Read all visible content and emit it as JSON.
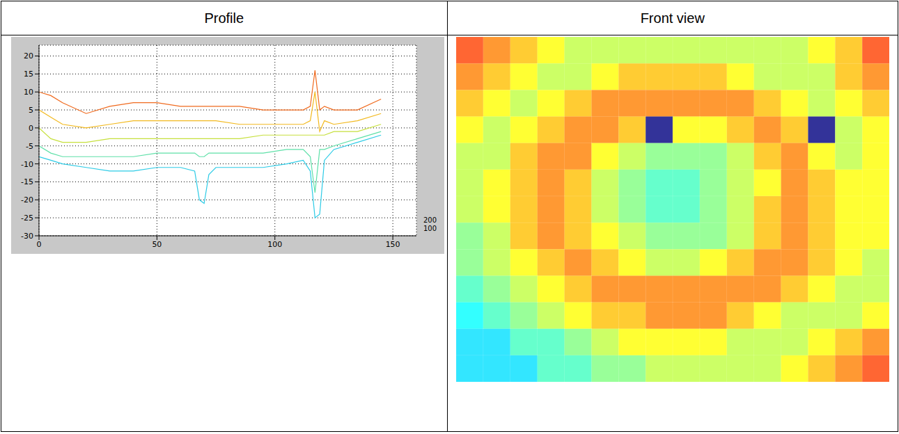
{
  "table": {
    "headers": [
      "Profile",
      "Front view"
    ]
  },
  "chart_data": [
    {
      "type": "line",
      "x": [
        0,
        5,
        10,
        20,
        30,
        40,
        50,
        60,
        66,
        68,
        70,
        72,
        75,
        85,
        95,
        105,
        112,
        115,
        117,
        119,
        121,
        125,
        135,
        145
      ],
      "series": [
        {
          "color": "#f06a1e",
          "values": [
            10,
            9,
            7,
            4,
            6,
            7,
            7,
            6,
            6,
            6,
            6,
            6,
            6,
            6,
            5,
            5,
            5,
            6,
            16,
            5,
            6,
            5,
            5,
            8
          ]
        },
        {
          "color": "#f2b91e",
          "values": [
            5,
            3,
            1,
            0,
            1,
            2,
            2,
            2,
            2,
            2,
            2,
            2,
            2,
            1,
            1,
            1,
            1,
            2,
            10,
            -1,
            2,
            1,
            2,
            4
          ]
        },
        {
          "color": "#c6e03c",
          "values": [
            0,
            -3,
            -4,
            -4,
            -3,
            -3,
            -3,
            -3,
            -3,
            -3,
            -3,
            -3,
            -3,
            -3,
            -2,
            -2,
            -2,
            -2,
            -2,
            -2,
            -2,
            -1,
            -1,
            1
          ]
        },
        {
          "color": "#5ee0a8",
          "values": [
            -5,
            -7,
            -8,
            -8,
            -8,
            -8,
            -7,
            -7,
            -7,
            -8,
            -8,
            -7,
            -7,
            -7,
            -7,
            -6,
            -6,
            -8,
            -18,
            -6,
            -6,
            -5,
            -3,
            -1
          ]
        },
        {
          "color": "#2ccbe6",
          "values": [
            -8,
            -9,
            -10,
            -11,
            -12,
            -12,
            -11,
            -11,
            -12,
            -20,
            -21,
            -13,
            -11,
            -11,
            -11,
            -10,
            -9,
            -12,
            -25,
            -24,
            -9,
            -6,
            -4,
            -2
          ]
        }
      ],
      "xlim": [
        0,
        160
      ],
      "xticks": [
        0,
        50,
        100,
        150
      ],
      "ylim": [
        -30,
        23
      ],
      "yticks": [
        -30,
        -25,
        -20,
        -15,
        -10,
        -5,
        0,
        5,
        10,
        15,
        20
      ],
      "zticks": [
        200,
        100
      ],
      "grid": true
    },
    {
      "type": "heatmap",
      "tick_labels": false,
      "color_range": [
        -20,
        12
      ],
      "cells": [
        [
          6,
          4,
          2,
          0,
          -2,
          -2,
          -2,
          -2,
          -2,
          -2,
          -2,
          -2,
          -2,
          0,
          2,
          6
        ],
        [
          4,
          2,
          0,
          -2,
          -2,
          0,
          2,
          2,
          2,
          2,
          0,
          -2,
          -2,
          -2,
          2,
          4
        ],
        [
          2,
          0,
          -2,
          0,
          2,
          4,
          4,
          4,
          4,
          4,
          4,
          2,
          0,
          -2,
          0,
          2
        ],
        [
          0,
          -2,
          0,
          2,
          4,
          4,
          2,
          -25,
          0,
          0,
          2,
          4,
          2,
          -25,
          -2,
          0
        ],
        [
          -2,
          -2,
          2,
          4,
          4,
          0,
          -2,
          -4,
          -4,
          -4,
          -2,
          2,
          4,
          0,
          -2,
          0
        ],
        [
          -2,
          0,
          2,
          4,
          2,
          -2,
          -4,
          -6,
          -6,
          -4,
          -2,
          0,
          4,
          2,
          0,
          0
        ],
        [
          -2,
          0,
          2,
          4,
          2,
          -2,
          -4,
          -6,
          -6,
          -4,
          -2,
          2,
          4,
          2,
          0,
          0
        ],
        [
          -4,
          -2,
          2,
          4,
          2,
          0,
          -2,
          -4,
          -4,
          -4,
          -2,
          2,
          4,
          2,
          0,
          0
        ],
        [
          -4,
          -2,
          0,
          2,
          4,
          2,
          0,
          -2,
          -2,
          0,
          2,
          4,
          4,
          2,
          0,
          -2
        ],
        [
          -6,
          -4,
          -2,
          0,
          2,
          4,
          4,
          4,
          4,
          4,
          4,
          4,
          2,
          0,
          -2,
          -2
        ],
        [
          -8,
          -6,
          -4,
          -2,
          0,
          2,
          2,
          4,
          4,
          4,
          2,
          0,
          -2,
          -2,
          -2,
          0
        ],
        [
          -9,
          -9,
          -6,
          -6,
          -4,
          -2,
          0,
          0,
          0,
          0,
          -2,
          -2,
          -2,
          0,
          2,
          4
        ],
        [
          -9,
          -9,
          -9,
          -6,
          -6,
          -4,
          -4,
          -2,
          -2,
          -2,
          -2,
          -2,
          0,
          2,
          4,
          6
        ]
      ]
    }
  ]
}
